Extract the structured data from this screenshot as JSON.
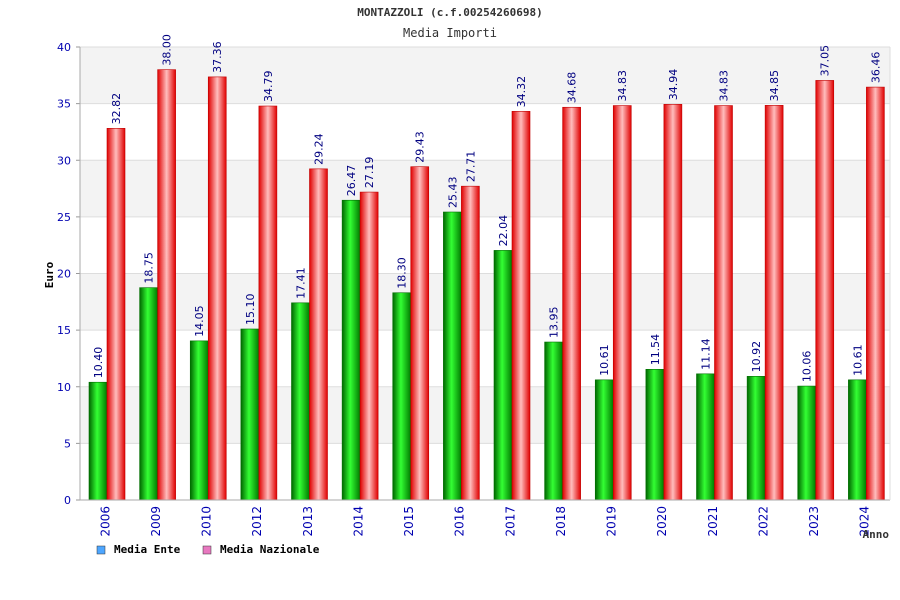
{
  "chart_data": {
    "type": "bar",
    "title": "MONTAZZOLI (c.f.00254260698)",
    "subtitle": "Media Importi",
    "xlabel": "Anno",
    "ylabel": "Euro",
    "ylim": [
      0,
      40
    ],
    "yticks": [
      "0",
      "5",
      "10",
      "15",
      "20",
      "25",
      "30",
      "35",
      "40"
    ],
    "grid": true,
    "legend_position": "bottom-left",
    "categories": [
      "2006",
      "2009",
      "2010",
      "2012",
      "2013",
      "2014",
      "2015",
      "2016",
      "2017",
      "2018",
      "2019",
      "2020",
      "2021",
      "2022",
      "2023",
      "2024"
    ],
    "series": [
      {
        "name": "Media Ente",
        "color": "#00c000",
        "legend_color": "#4da6ff",
        "values": [
          10.4,
          18.75,
          14.05,
          15.1,
          17.41,
          26.47,
          18.3,
          25.43,
          22.04,
          13.95,
          10.61,
          11.54,
          11.14,
          10.92,
          10.06,
          10.61
        ],
        "labels": [
          "10.40",
          "18.75",
          "14.05",
          "15.10",
          "17.41",
          "26.47",
          "18.30",
          "25.43",
          "22.04",
          "13.95",
          "10.61",
          "11.54",
          "11.14",
          "10.92",
          "10.06",
          "10.61"
        ]
      },
      {
        "name": "Media Nazionale",
        "color": "#ff1a1a",
        "legend_color": "#e878c0",
        "values": [
          32.82,
          38.0,
          37.36,
          34.79,
          29.24,
          27.19,
          29.43,
          27.71,
          34.32,
          34.68,
          34.83,
          34.94,
          34.83,
          34.85,
          37.05,
          36.46
        ],
        "labels": [
          "32.82",
          "38.00",
          "37.36",
          "34.79",
          "29.24",
          "27.19",
          "29.43",
          "27.71",
          "34.32",
          "34.68",
          "34.83",
          "34.94",
          "34.83",
          "34.85",
          "37.05",
          "36.46"
        ]
      }
    ]
  }
}
